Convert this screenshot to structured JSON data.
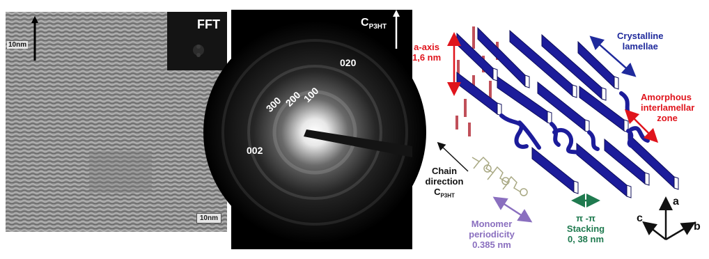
{
  "tem": {
    "fft_label": "FFT",
    "scale_top": "10nm",
    "scale_bottom": "10nm"
  },
  "saed": {
    "axis_label": "C",
    "axis_sub": "P3HT",
    "reflections": [
      "020",
      "300",
      "200",
      "100",
      "002"
    ]
  },
  "diagram": {
    "a_axis": "a-axis",
    "a_axis_value": "1,6 nm",
    "crystalline_1": "Crystalline",
    "crystalline_2": "lamellae",
    "amorphous_1": "Amorphous",
    "amorphous_2": "interlamellar",
    "amorphous_3": "zone",
    "chain_1": "Chain",
    "chain_2": "direction",
    "chain_3": "C",
    "chain_sub": "P3HT",
    "monomer_1": "Monomer",
    "monomer_2": "periodicity",
    "monomer_3": "0.385 nm",
    "stack_1": "π -π",
    "stack_2": "Stacking",
    "stack_3": "0, 38 nm",
    "axis_a": "a",
    "axis_b": "b",
    "axis_c": "c",
    "colors": {
      "lamella": "#1c1c9a",
      "lamella_edge": "#ffffff",
      "amorphous": "#1c1c9a",
      "a_axis_bars": "#c0505a",
      "red_label": "#e0141c",
      "blue_label": "#1f2a9c",
      "purple_label": "#8a6fbf",
      "green_label": "#1f7a4f"
    }
  }
}
